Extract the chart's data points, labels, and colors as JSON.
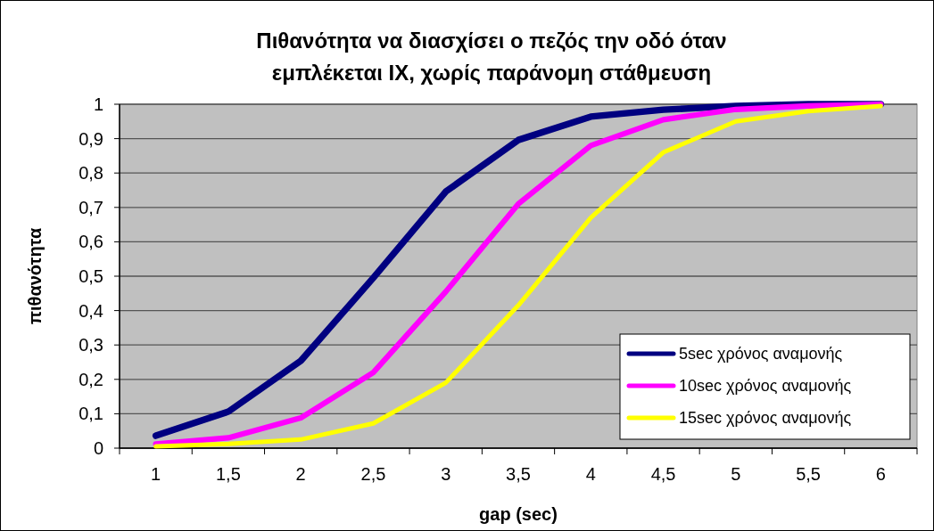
{
  "chart_data": {
    "type": "line",
    "title": "Πιθανότητα να διασχίσει ο πεζός την οδό όταν\nεμπλέκεται ΙΧ, χωρίς παράνομη στάθμευση",
    "xlabel": "gap (sec)",
    "ylabel": "πιθανότητα",
    "categories": [
      "1",
      "1,5",
      "2",
      "2,5",
      "3",
      "3,5",
      "4",
      "4,5",
      "5",
      "5,5",
      "6"
    ],
    "series": [
      {
        "name": "5sec χρόνος αναμονής",
        "color": "#000080",
        "values": [
          0.036,
          0.106,
          0.254,
          0.495,
          0.746,
          0.896,
          0.964,
          0.984,
          0.995,
          1.0,
          1.0
        ]
      },
      {
        "name": "10sec χρόνος αναμονής",
        "color": "#ff00ff",
        "values": [
          0.012,
          0.03,
          0.088,
          0.22,
          0.455,
          0.71,
          0.88,
          0.955,
          0.985,
          0.995,
          1.0
        ]
      },
      {
        "name": "15sec χρόνος αναμονής",
        "color": "#ffff00",
        "values": [
          0.005,
          0.012,
          0.025,
          0.072,
          0.19,
          0.415,
          0.67,
          0.86,
          0.95,
          0.98,
          0.995
        ]
      }
    ],
    "ylim": [
      0,
      1
    ],
    "yticks": [
      0,
      {
        "value": 0.1,
        "label": "0,1"
      },
      {
        "value": 0.2,
        "label": "0,2"
      },
      {
        "value": 0.3,
        "label": "0,3"
      },
      {
        "value": 0.4,
        "label": "0,4"
      },
      {
        "value": 0.5,
        "label": "0,5"
      },
      {
        "value": 0.6,
        "label": "0,6"
      },
      {
        "value": 0.7,
        "label": "0,7"
      },
      {
        "value": 0.8,
        "label": "0,8"
      },
      {
        "value": 0.9,
        "label": "0,9"
      },
      1
    ],
    "grid": "y",
    "legend": "bottom right",
    "marker": "none",
    "line_style": "solid"
  }
}
